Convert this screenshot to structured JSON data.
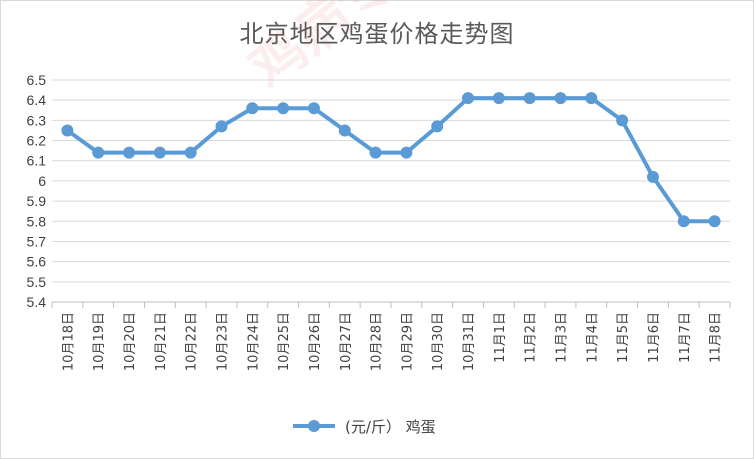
{
  "chart_data": {
    "type": "line",
    "title": "北京地区鸡蛋价格走势图",
    "categories": [
      "10月18日",
      "10月19日",
      "10月20日",
      "10月21日",
      "10月22日",
      "10月23日",
      "10月24日",
      "10月25日",
      "10月26日",
      "10月27日",
      "10月28日",
      "10月29日",
      "10月30日",
      "10月31日",
      "11月1日",
      "11月2日",
      "11月3日",
      "11月4日",
      "11月5日",
      "11月6日",
      "11月7日",
      "11月8日"
    ],
    "series": [
      {
        "name": "(元/斤） 鸡蛋",
        "values": [
          6.25,
          6.14,
          6.14,
          6.14,
          6.14,
          6.27,
          6.36,
          6.36,
          6.36,
          6.25,
          6.14,
          6.14,
          6.27,
          6.41,
          6.41,
          6.41,
          6.41,
          6.41,
          6.3,
          6.02,
          5.8,
          5.8
        ]
      }
    ],
    "ylim": [
      5.4,
      6.5
    ],
    "yticks": [
      "5.4",
      "5.5",
      "5.6",
      "5.7",
      "5.8",
      "5.9",
      "6",
      "6.1",
      "6.2",
      "6.3",
      "6.4",
      "6.5"
    ],
    "grid": true,
    "legend": "bottom",
    "color": "#5b9bd5"
  },
  "watermark": "鸡病专业网"
}
